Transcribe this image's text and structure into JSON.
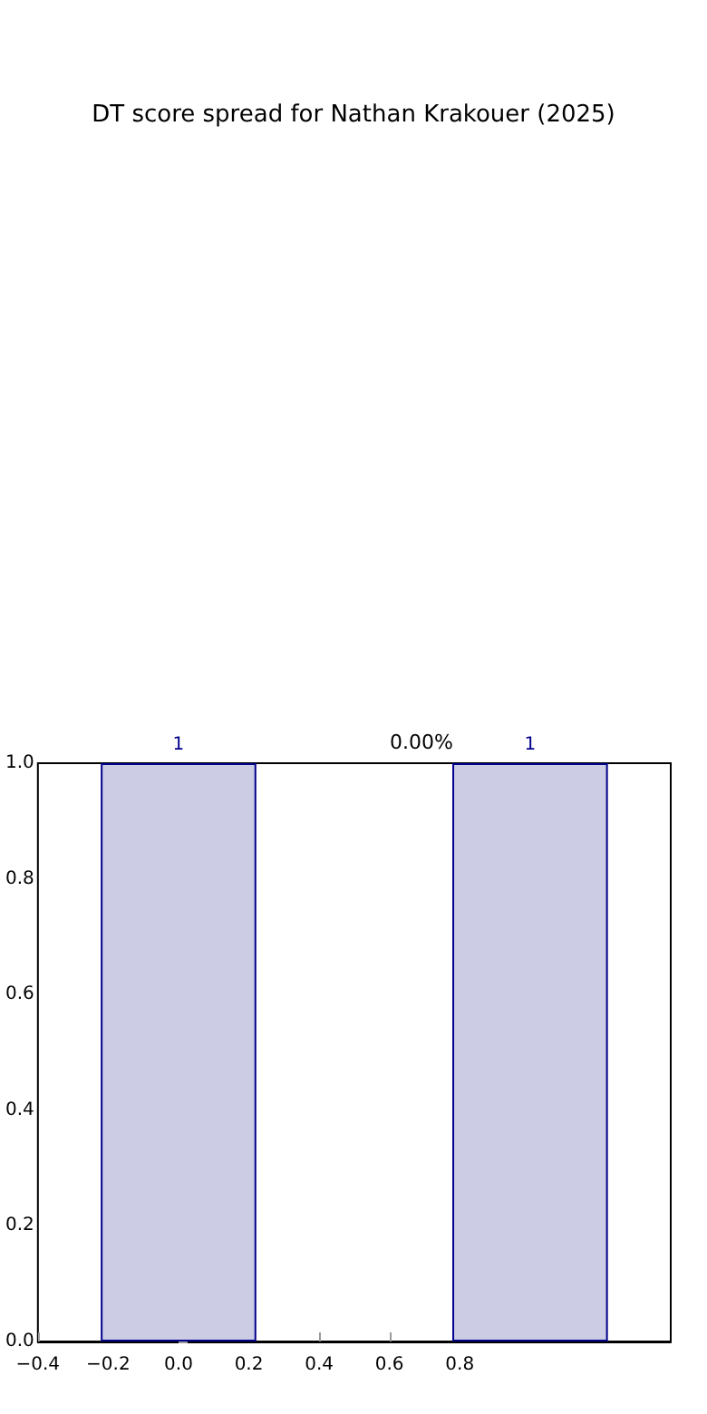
{
  "chart_data": {
    "type": "bar",
    "title": "DT score spread for Nathan Krakouer (2025)",
    "x": [
      0,
      1
    ],
    "values": [
      1,
      1
    ],
    "color": "#ccccE5",
    "data_labels": true,
    "grid": false,
    "xlim": [
      -0.4,
      1.4
    ],
    "xticks": [
      {
        "value": -0.4,
        "label": "−0.4"
      },
      {
        "value": -0.2,
        "label": "−0.2"
      },
      {
        "value": 0,
        "label": "0.0"
      },
      {
        "value": 0.2,
        "label": "0.2"
      },
      {
        "value": 0.4,
        "label": "0.4"
      },
      {
        "value": 0.6,
        "label": "0.6"
      },
      {
        "value": 0.8,
        "label": "0.8"
      }
    ],
    "ylim": [
      0,
      1
    ],
    "yticks": [
      {
        "value": 0,
        "label": "0.0"
      },
      {
        "value": 0.2,
        "label": "0.2"
      },
      {
        "value": 0.4,
        "label": "0.4"
      },
      {
        "value": 0.6,
        "label": "0.6"
      },
      {
        "value": 0.8,
        "label": "0.8"
      },
      {
        "value": 1,
        "label": "1.0"
      }
    ],
    "annotations": [
      "0.00%"
    ]
  }
}
